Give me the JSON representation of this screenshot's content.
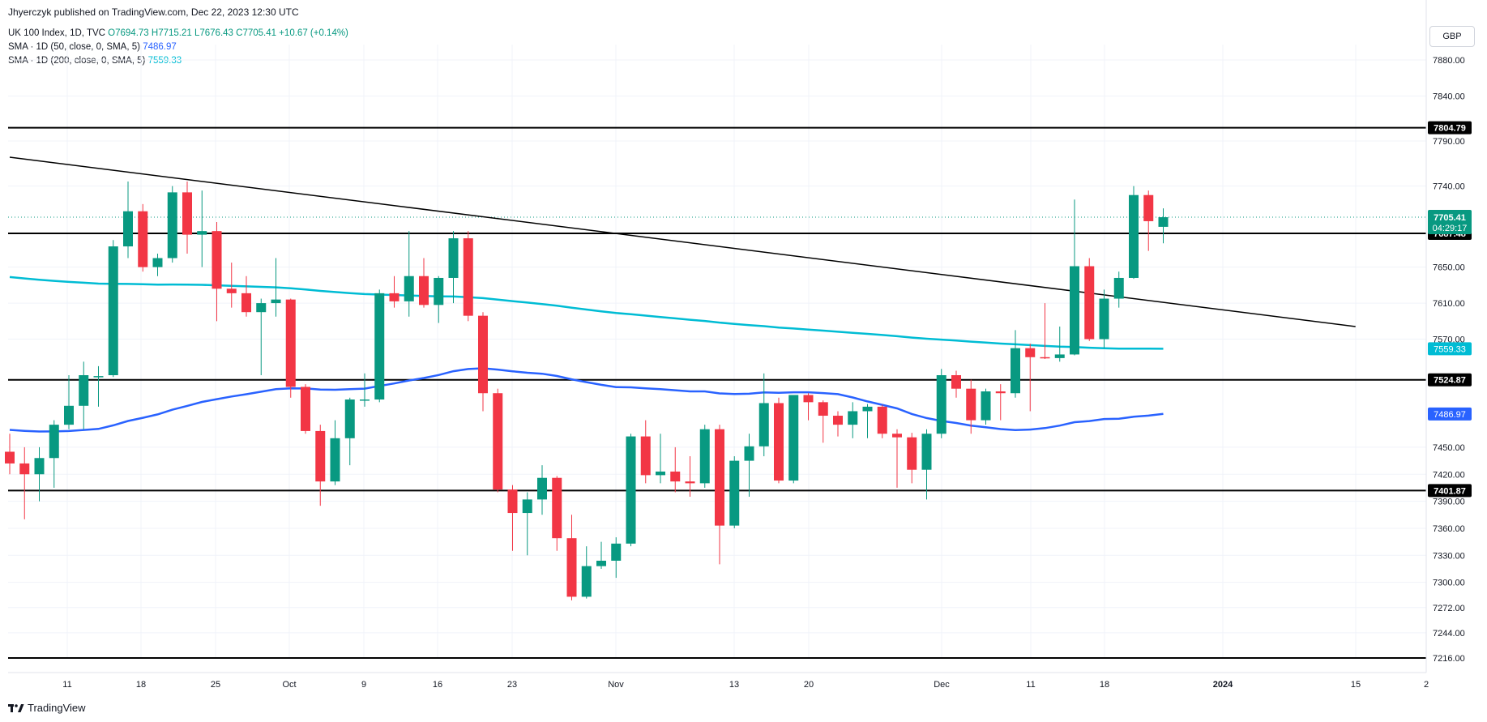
{
  "header": {
    "published": "Jhyerczyk published on TradingView.com, Dec 22, 2023 12:30 UTC"
  },
  "legend": {
    "symbol": "UK 100 Index, 1D, TVC",
    "o": "O7694.73",
    "h": "H7715.21",
    "l": "L7676.43",
    "c": "C7705.41",
    "change": "+10.67 (+0.14%)",
    "sma50_label": "SMA · 1D (50, close, 0, SMA, 5)",
    "sma50_value": "7486.97",
    "sma200_label": "SMA · 1D (200, close, 0, SMA, 5)",
    "sma200_value": "7559.33"
  },
  "currency": "GBP",
  "brand": "TradingView",
  "colors": {
    "up": "#089981",
    "down": "#f23645",
    "sma50": "#2962ff",
    "sma200": "#00bcd4",
    "level": "#000000"
  },
  "chart_data": {
    "type": "candlestick",
    "title": "UK 100 Index, 1D, TVC",
    "ylim": [
      7195,
      7920
    ],
    "y_ticks": [
      7216.0,
      7244.0,
      7272.0,
      7300.0,
      7330.0,
      7360.0,
      7390.0,
      7420.0,
      7450.0,
      7570.0,
      7610.0,
      7650.0,
      7740.0,
      7790.0,
      7840.0,
      7880.0
    ],
    "x_ticks": [
      "11",
      "18",
      "25",
      "Oct",
      "9",
      "16",
      "23",
      "Nov",
      "13",
      "20",
      "Dec",
      "11",
      "18",
      "2024",
      "15",
      "2"
    ],
    "candles": [
      {
        "o": 7445,
        "h": 7465,
        "l": 7420,
        "c": 7432
      },
      {
        "o": 7432,
        "h": 7450,
        "l": 7370,
        "c": 7420
      },
      {
        "o": 7420,
        "h": 7450,
        "l": 7390,
        "c": 7438
      },
      {
        "o": 7438,
        "h": 7480,
        "l": 7405,
        "c": 7475
      },
      {
        "o": 7475,
        "h": 7530,
        "l": 7470,
        "c": 7496
      },
      {
        "o": 7496,
        "h": 7545,
        "l": 7470,
        "c": 7530
      },
      {
        "o": 7528,
        "h": 7540,
        "l": 7495,
        "c": 7529
      },
      {
        "o": 7530,
        "h": 7680,
        "l": 7528,
        "c": 7673
      },
      {
        "o": 7673,
        "h": 7745,
        "l": 7660,
        "c": 7712
      },
      {
        "o": 7712,
        "h": 7720,
        "l": 7645,
        "c": 7650
      },
      {
        "o": 7650,
        "h": 7665,
        "l": 7640,
        "c": 7660
      },
      {
        "o": 7660,
        "h": 7740,
        "l": 7655,
        "c": 7733
      },
      {
        "o": 7733,
        "h": 7745,
        "l": 7665,
        "c": 7686
      },
      {
        "o": 7686,
        "h": 7735,
        "l": 7650,
        "c": 7690
      },
      {
        "o": 7690,
        "h": 7700,
        "l": 7590,
        "c": 7626
      },
      {
        "o": 7626,
        "h": 7655,
        "l": 7605,
        "c": 7621
      },
      {
        "o": 7621,
        "h": 7640,
        "l": 7595,
        "c": 7600
      },
      {
        "o": 7600,
        "h": 7615,
        "l": 7530,
        "c": 7610
      },
      {
        "o": 7610,
        "h": 7660,
        "l": 7595,
        "c": 7614
      },
      {
        "o": 7614,
        "h": 7615,
        "l": 7505,
        "c": 7517
      },
      {
        "o": 7517,
        "h": 7520,
        "l": 7465,
        "c": 7468
      },
      {
        "o": 7468,
        "h": 7475,
        "l": 7385,
        "c": 7412
      },
      {
        "o": 7412,
        "h": 7480,
        "l": 7408,
        "c": 7460
      },
      {
        "o": 7460,
        "h": 7505,
        "l": 7430,
        "c": 7503
      },
      {
        "o": 7503,
        "h": 7532,
        "l": 7495,
        "c": 7503
      },
      {
        "o": 7503,
        "h": 7625,
        "l": 7500,
        "c": 7621
      },
      {
        "o": 7621,
        "h": 7640,
        "l": 7605,
        "c": 7612
      },
      {
        "o": 7612,
        "h": 7690,
        "l": 7595,
        "c": 7640
      },
      {
        "o": 7640,
        "h": 7660,
        "l": 7605,
        "c": 7608
      },
      {
        "o": 7608,
        "h": 7640,
        "l": 7588,
        "c": 7638
      },
      {
        "o": 7638,
        "h": 7690,
        "l": 7610,
        "c": 7682
      },
      {
        "o": 7682,
        "h": 7690,
        "l": 7590,
        "c": 7596
      },
      {
        "o": 7596,
        "h": 7600,
        "l": 7490,
        "c": 7510
      },
      {
        "o": 7510,
        "h": 7515,
        "l": 7400,
        "c": 7403
      },
      {
        "o": 7403,
        "h": 7408,
        "l": 7335,
        "c": 7377
      },
      {
        "o": 7377,
        "h": 7400,
        "l": 7330,
        "c": 7392
      },
      {
        "o": 7392,
        "h": 7430,
        "l": 7375,
        "c": 7416
      },
      {
        "o": 7416,
        "h": 7418,
        "l": 7335,
        "c": 7349
      },
      {
        "o": 7349,
        "h": 7375,
        "l": 7280,
        "c": 7284
      },
      {
        "o": 7284,
        "h": 7340,
        "l": 7282,
        "c": 7318
      },
      {
        "o": 7318,
        "h": 7345,
        "l": 7315,
        "c": 7324
      },
      {
        "o": 7324,
        "h": 7350,
        "l": 7305,
        "c": 7343
      },
      {
        "o": 7343,
        "h": 7465,
        "l": 7340,
        "c": 7462
      },
      {
        "o": 7462,
        "h": 7480,
        "l": 7410,
        "c": 7419
      },
      {
        "o": 7419,
        "h": 7465,
        "l": 7410,
        "c": 7423
      },
      {
        "o": 7423,
        "h": 7450,
        "l": 7400,
        "c": 7412
      },
      {
        "o": 7412,
        "h": 7440,
        "l": 7395,
        "c": 7410
      },
      {
        "o": 7410,
        "h": 7475,
        "l": 7405,
        "c": 7470
      },
      {
        "o": 7470,
        "h": 7475,
        "l": 7320,
        "c": 7363
      },
      {
        "o": 7363,
        "h": 7440,
        "l": 7360,
        "c": 7435
      },
      {
        "o": 7435,
        "h": 7465,
        "l": 7395,
        "c": 7451
      },
      {
        "o": 7451,
        "h": 7532,
        "l": 7440,
        "c": 7499
      },
      {
        "o": 7499,
        "h": 7505,
        "l": 7410,
        "c": 7413
      },
      {
        "o": 7413,
        "h": 7505,
        "l": 7410,
        "c": 7508
      },
      {
        "o": 7508,
        "h": 7510,
        "l": 7480,
        "c": 7500
      },
      {
        "o": 7500,
        "h": 7502,
        "l": 7455,
        "c": 7485
      },
      {
        "o": 7485,
        "h": 7490,
        "l": 7462,
        "c": 7475
      },
      {
        "o": 7475,
        "h": 7500,
        "l": 7460,
        "c": 7490
      },
      {
        "o": 7490,
        "h": 7498,
        "l": 7460,
        "c": 7495
      },
      {
        "o": 7495,
        "h": 7497,
        "l": 7460,
        "c": 7465
      },
      {
        "o": 7465,
        "h": 7470,
        "l": 7405,
        "c": 7461
      },
      {
        "o": 7461,
        "h": 7466,
        "l": 7410,
        "c": 7425
      },
      {
        "o": 7425,
        "h": 7470,
        "l": 7392,
        "c": 7465
      },
      {
        "o": 7465,
        "h": 7537,
        "l": 7460,
        "c": 7530
      },
      {
        "o": 7530,
        "h": 7535,
        "l": 7505,
        "c": 7515
      },
      {
        "o": 7515,
        "h": 7525,
        "l": 7465,
        "c": 7480
      },
      {
        "o": 7480,
        "h": 7515,
        "l": 7475,
        "c": 7512
      },
      {
        "o": 7512,
        "h": 7520,
        "l": 7480,
        "c": 7510
      },
      {
        "o": 7510,
        "h": 7580,
        "l": 7505,
        "c": 7560
      },
      {
        "o": 7560,
        "h": 7565,
        "l": 7490,
        "c": 7550
      },
      {
        "o": 7550,
        "h": 7610,
        "l": 7548,
        "c": 7549
      },
      {
        "o": 7549,
        "h": 7584,
        "l": 7545,
        "c": 7553
      },
      {
        "o": 7553,
        "h": 7725,
        "l": 7552,
        "c": 7651
      },
      {
        "o": 7651,
        "h": 7660,
        "l": 7568,
        "c": 7570
      },
      {
        "o": 7570,
        "h": 7625,
        "l": 7560,
        "c": 7615
      },
      {
        "o": 7615,
        "h": 7645,
        "l": 7605,
        "c": 7638
      },
      {
        "o": 7638,
        "h": 7740,
        "l": 7637,
        "c": 7730
      },
      {
        "o": 7730,
        "h": 7735,
        "l": 7668,
        "c": 7701
      },
      {
        "o": 7694.73,
        "h": 7715.21,
        "l": 7676.43,
        "c": 7705.41
      }
    ],
    "sma50": [
      7486.97
    ],
    "sma200": [
      7559.33
    ],
    "horizontal_levels": [
      {
        "value": 7804.79,
        "label": "7804.79"
      },
      {
        "value": 7687.48,
        "label": "7687.48"
      },
      {
        "value": 7524.87,
        "label": "7524.87"
      },
      {
        "value": 7401.87,
        "label": "7401.87"
      },
      {
        "value": 7216.0
      }
    ],
    "trendline": {
      "from": [
        0,
        7772
      ],
      "to": [
        91,
        7584
      ]
    },
    "last_price": {
      "value": 7705.41,
      "label": "7705.41",
      "countdown": "04:29:17"
    },
    "sma50_label": "7486.97",
    "sma200_label": "7559.33"
  }
}
